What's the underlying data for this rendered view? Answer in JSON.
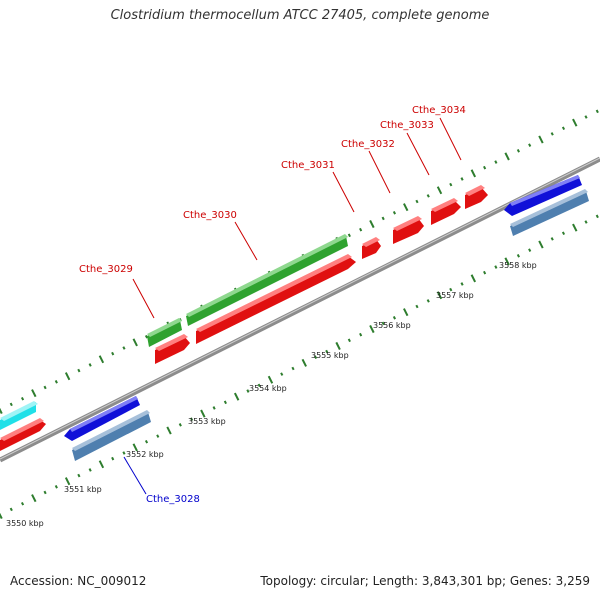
{
  "title": "Clostridium thermocellum ATCC 27405, complete genome",
  "footer": {
    "accession": "Accession: NC_009012",
    "summary": "Topology: circular; Length: 3,843,301 bp; Genes: 3,259"
  },
  "colors": {
    "backbone": "#8c8c8c",
    "tick": "#2e7d2e",
    "forward_gene": "#e01010",
    "reverse_gene": "#1010d8",
    "cds_forward": "#2fa22f",
    "cds_reverse": "#4f7faf",
    "other": "#20e0e8",
    "label_forward": "#cc0000",
    "label_reverse": "#0000cc"
  },
  "scale_labels": [
    {
      "label": "3550 kbp"
    },
    {
      "label": "3551 kbp"
    },
    {
      "label": "3552 kbp"
    },
    {
      "label": "3553 kbp"
    },
    {
      "label": "3554 kbp"
    },
    {
      "label": "3555 kbp"
    },
    {
      "label": "3556 kbp"
    },
    {
      "label": "3557 kbp"
    },
    {
      "label": "3558 kbp"
    }
  ],
  "gene_labels": [
    {
      "name": "Cthe_3029",
      "strand": "forward"
    },
    {
      "name": "Cthe_3030",
      "strand": "forward"
    },
    {
      "name": "Cthe_3031",
      "strand": "forward"
    },
    {
      "name": "Cthe_3032",
      "strand": "forward"
    },
    {
      "name": "Cthe_3033",
      "strand": "forward"
    },
    {
      "name": "Cthe_3034",
      "strand": "forward"
    },
    {
      "name": "Cthe_3028",
      "strand": "reverse"
    }
  ]
}
